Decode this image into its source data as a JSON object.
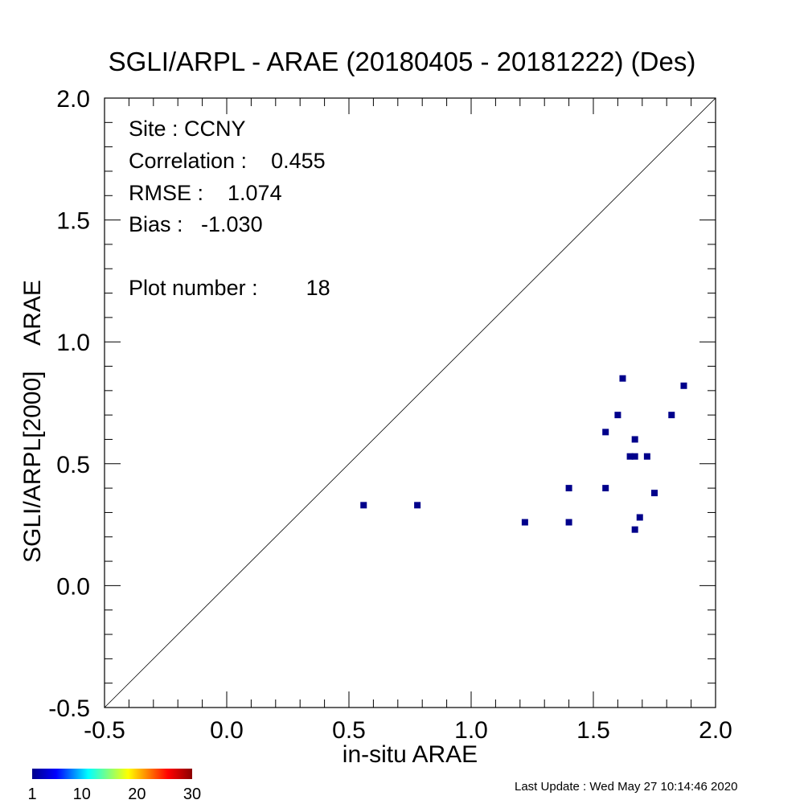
{
  "chart_data": {
    "type": "scatter",
    "title": "SGLI/ARPL - ARAE (20180405 - 20181222) (Des)",
    "xlabel": "in-situ ARAE",
    "ylabel": "SGLI/ARPL[2000]    ARAE",
    "xlim": [
      -0.5,
      2.0
    ],
    "ylim": [
      -0.5,
      2.0
    ],
    "xticks": [
      "-0.5",
      "0.0",
      "0.5",
      "1.0",
      "1.5",
      "2.0"
    ],
    "yticks": [
      "-0.5",
      "0.0",
      "0.5",
      "1.0",
      "1.5",
      "2.0"
    ],
    "one_to_one_line": true,
    "grid": false,
    "marker_color": "#00008b",
    "points": [
      {
        "x": 0.56,
        "y": 0.33
      },
      {
        "x": 0.78,
        "y": 0.33
      },
      {
        "x": 1.22,
        "y": 0.26
      },
      {
        "x": 1.4,
        "y": 0.26
      },
      {
        "x": 1.4,
        "y": 0.4
      },
      {
        "x": 1.55,
        "y": 0.4
      },
      {
        "x": 1.55,
        "y": 0.63
      },
      {
        "x": 1.6,
        "y": 0.7
      },
      {
        "x": 1.62,
        "y": 0.85
      },
      {
        "x": 1.65,
        "y": 0.53
      },
      {
        "x": 1.67,
        "y": 0.53
      },
      {
        "x": 1.67,
        "y": 0.6
      },
      {
        "x": 1.67,
        "y": 0.23
      },
      {
        "x": 1.69,
        "y": 0.28
      },
      {
        "x": 1.72,
        "y": 0.53
      },
      {
        "x": 1.75,
        "y": 0.38
      },
      {
        "x": 1.82,
        "y": 0.7
      },
      {
        "x": 1.87,
        "y": 0.82
      }
    ],
    "colorbar": {
      "ticks": [
        "1",
        "10",
        "20",
        "30"
      ],
      "colors": [
        "#00008b",
        "#0000ff",
        "#00ffff",
        "#ffff00",
        "#ff0000",
        "#8b0000"
      ]
    }
  },
  "stats": {
    "site": "Site : CCNY",
    "correlation": "Correlation :    0.455",
    "rmse": "RMSE :    1.074",
    "bias": "Bias :   -1.030",
    "plot_number": "Plot number :        18"
  },
  "footer": "Last Update : Wed May 27 10:14:46 2020"
}
